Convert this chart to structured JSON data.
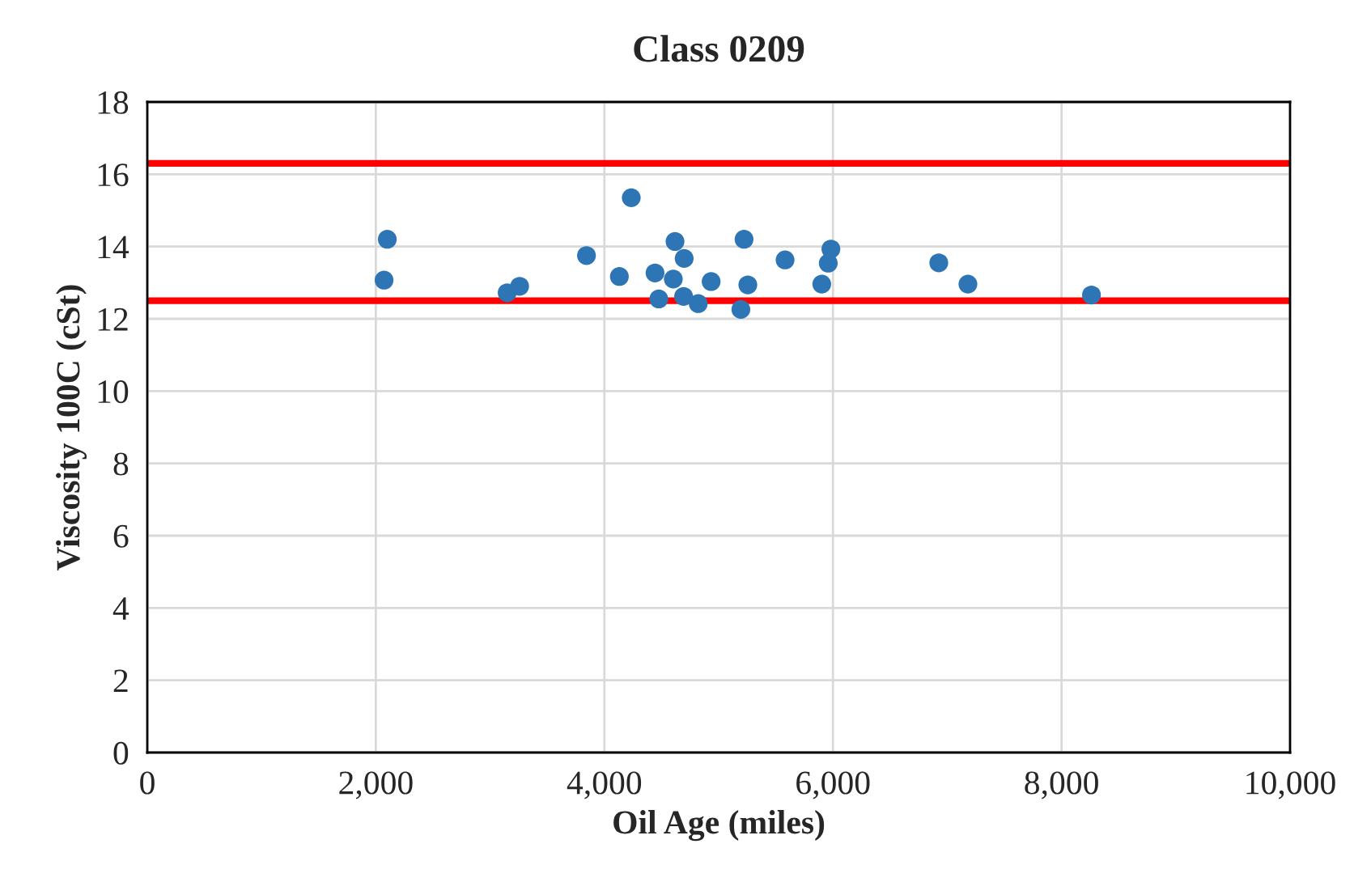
{
  "chart_data": {
    "type": "scatter",
    "title": "Class 0209",
    "xlabel": "Oil Age (miles)",
    "ylabel": "Viscosity 100C (cSt)",
    "x": [
      2100,
      2072,
      3149,
      3258,
      3843,
      4235,
      4131,
      4443,
      4476,
      4618,
      4698,
      4603,
      4693,
      4821,
      4934,
      5222,
      5194,
      5255,
      5581,
      5982,
      5959,
      5902,
      6926,
      7181,
      8262
    ],
    "values": [
      14.2,
      13.07,
      12.72,
      12.9,
      13.75,
      15.35,
      13.17,
      13.27,
      12.55,
      14.14,
      13.67,
      13.1,
      12.62,
      12.42,
      13.03,
      14.2,
      12.26,
      12.94,
      13.63,
      13.93,
      13.54,
      12.96,
      13.55,
      12.96,
      12.66
    ],
    "color": "#2e75b6",
    "marker": "circle",
    "xlim": [
      0,
      10000
    ],
    "xticks": [
      {
        "value": 0,
        "label": "0"
      },
      {
        "value": 2000,
        "label": "2,000"
      },
      {
        "value": 4000,
        "label": "4,000"
      },
      {
        "value": 6000,
        "label": "6,000"
      },
      {
        "value": 8000,
        "label": "8,000"
      },
      {
        "value": 10000,
        "label": "10,000"
      }
    ],
    "ylim": [
      0,
      18
    ],
    "yticks": [
      0,
      2,
      4,
      6,
      8,
      10,
      12,
      14,
      16,
      18
    ],
    "grid": true,
    "legend": false,
    "ref_lines": [
      {
        "axis": "y",
        "value": 16.3,
        "color": "#ff0000"
      },
      {
        "axis": "y",
        "value": 12.5,
        "color": "#ff0000"
      }
    ]
  }
}
